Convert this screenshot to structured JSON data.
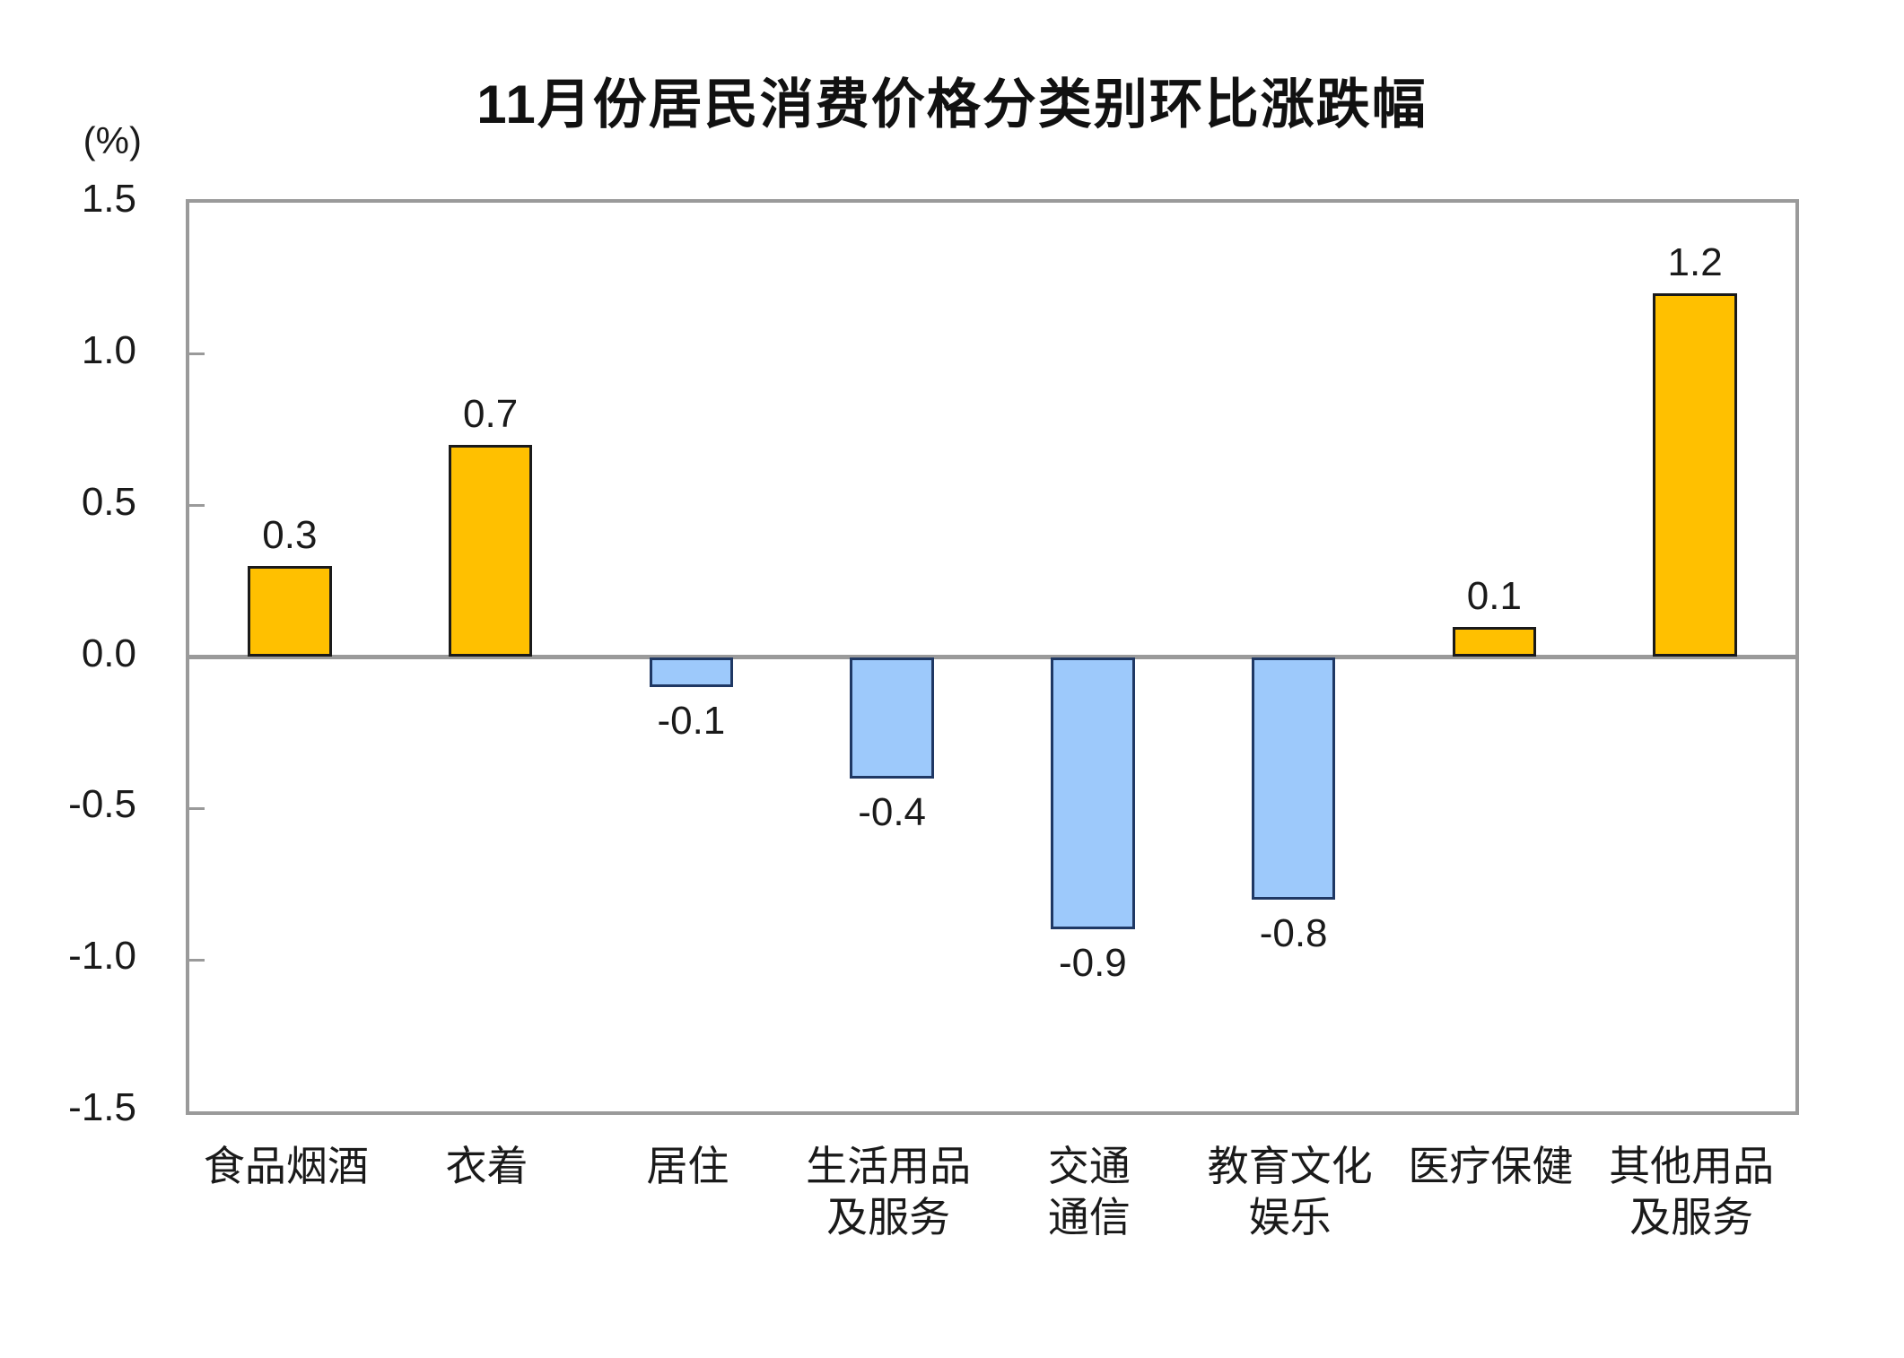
{
  "chart_data": {
    "type": "bar",
    "title": "11月份居民消费价格分类别环比涨跌幅",
    "unit_label": "(%)",
    "categories": [
      "食品烟酒",
      "衣着",
      "居住",
      "生活用品及服务",
      "交通通信",
      "教育文化娱乐",
      "医疗保健",
      "其他用品及服务"
    ],
    "category_label_lines": [
      [
        "食品烟酒"
      ],
      [
        "衣着"
      ],
      [
        "居住"
      ],
      [
        "生活用品",
        "及服务"
      ],
      [
        "交通",
        "通信"
      ],
      [
        "教育文化",
        "娱乐"
      ],
      [
        "医疗保健"
      ],
      [
        "其他用品",
        "及服务"
      ]
    ],
    "values": [
      0.3,
      0.7,
      -0.1,
      -0.4,
      -0.9,
      -0.8,
      0.1,
      1.2
    ],
    "value_labels": [
      "0.3",
      "0.7",
      "-0.1",
      "-0.4",
      "-0.9",
      "-0.8",
      "0.1",
      "1.2"
    ],
    "ylim": [
      -1.5,
      1.5
    ],
    "yticks": [
      1.5,
      1.0,
      0.5,
      0.0,
      -0.5,
      -1.0,
      -1.5
    ],
    "ytick_labels": [
      "1.5",
      "1.0",
      "0.5",
      "0.0",
      "-0.5",
      "-1.0",
      "-1.5"
    ],
    "xlabel": "",
    "ylabel": "(%)",
    "grid": "off",
    "legend": "none",
    "colors": {
      "positive_fill": "#FFC000",
      "positive_border": "#1a1a1a",
      "negative_fill": "#9DC9FB",
      "negative_border": "#1F3864",
      "axis_line": "#9a9a9a",
      "text": "#1a1a1a"
    }
  }
}
